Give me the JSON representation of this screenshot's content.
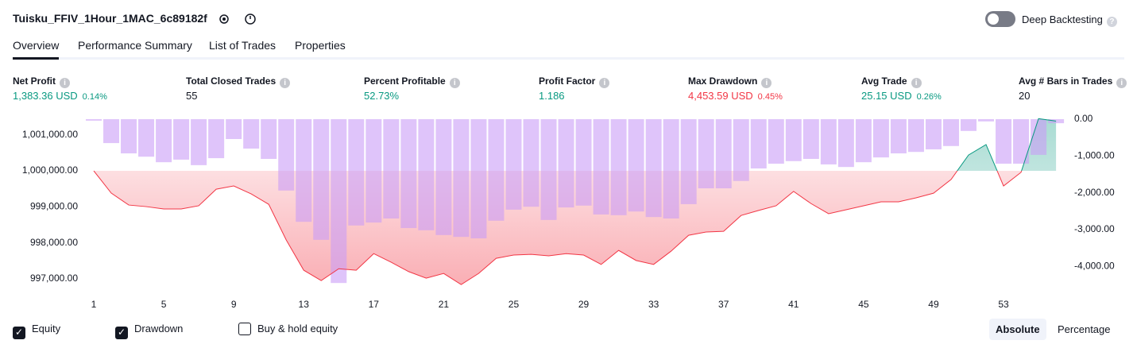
{
  "header": {
    "title": "Tuisku_FFIV_1Hour_1MAC_6c89182f",
    "toggle_label": "Deep Backtesting",
    "toggle_on": false
  },
  "tabs": {
    "items": [
      "Overview",
      "Performance Summary",
      "List of Trades",
      "Properties"
    ],
    "active": 0
  },
  "metrics": [
    {
      "label": "Net Profit",
      "value": "1,383.36 USD",
      "percent": "0.14%",
      "color": "#089981"
    },
    {
      "label": "Total Closed Trades",
      "value": "55",
      "color": "#131722"
    },
    {
      "label": "Percent Profitable",
      "value": "52.73%",
      "color": "#089981"
    },
    {
      "label": "Profit Factor",
      "value": "1.186",
      "color": "#089981"
    },
    {
      "label": "Max Drawdown",
      "value": "4,453.59 USD",
      "percent": "0.45%",
      "color": "#f23645"
    },
    {
      "label": "Avg Trade",
      "value": "25.15 USD",
      "percent": "0.26%",
      "color": "#089981"
    },
    {
      "label": "Avg # Bars in Trades",
      "value": "20",
      "color": "#131722"
    }
  ],
  "chart_data": {
    "type": "combo",
    "categories": [
      1,
      null,
      null,
      null,
      5,
      null,
      null,
      null,
      9,
      null,
      null,
      null,
      13,
      null,
      null,
      null,
      17,
      null,
      null,
      null,
      21,
      null,
      null,
      null,
      25,
      null,
      null,
      null,
      29,
      null,
      null,
      null,
      33,
      null,
      null,
      null,
      37,
      null,
      null,
      null,
      41,
      null,
      null,
      null,
      45,
      null,
      null,
      null,
      49,
      null,
      null,
      null,
      53,
      null,
      null,
      null
    ],
    "series": [
      {
        "name": "Equity",
        "type": "line",
        "axis": "y",
        "color": "#f23645",
        "color_up": "#089981",
        "values": [
          1000000,
          999382,
          999050,
          999006,
          998940,
          998940,
          999030,
          999490,
          999580,
          999360,
          999070,
          998080,
          997240,
          996950,
          997280,
          997240,
          997700,
          997460,
          997200,
          997020,
          997150,
          996840,
          997150,
          997570,
          997660,
          997680,
          997640,
          997700,
          997660,
          997400,
          997790,
          997510,
          997400,
          997770,
          998210,
          998300,
          998320,
          998760,
          998900,
          999030,
          999430,
          999090,
          998810,
          998920,
          999030,
          999140,
          999140,
          999250,
          999380,
          999760,
          1000440,
          1000730,
          999580,
          999960,
          1001450,
          1001383.36
        ]
      },
      {
        "name": "Drawdown",
        "type": "bar",
        "axis": "y2",
        "color": "#c99cf7",
        "values": [
          -40,
          -650,
          -930,
          -1020,
          -1170,
          -1100,
          -1250,
          -1060,
          -540,
          -800,
          -1080,
          -1940,
          -2790,
          -3280,
          -4453.59,
          -2890,
          -2810,
          -2700,
          -2960,
          -3020,
          -3150,
          -3200,
          -3240,
          -2760,
          -2460,
          -2380,
          -2740,
          -2400,
          -2350,
          -2590,
          -2610,
          -2510,
          -2660,
          -2700,
          -2310,
          -1880,
          -1880,
          -1680,
          -1340,
          -1210,
          -1140,
          -1080,
          -1230,
          -1300,
          -1170,
          -1040,
          -930,
          -890,
          -820,
          -730,
          -320,
          -60,
          -1210,
          -1210,
          -970,
          -110
        ]
      }
    ],
    "ylim": [
      996690,
      1001435
    ],
    "yticks": [
      {
        "value": 1001000,
        "label": "1,001,000.00"
      },
      {
        "value": 1000000,
        "label": "1,000,000.00"
      },
      {
        "value": 999000,
        "label": "999,000.00"
      },
      {
        "value": 998000,
        "label": "998,000.00"
      },
      {
        "value": 997000,
        "label": "997,000.00"
      }
    ],
    "y2lim": [
      -4644,
      0
    ],
    "y2ticks": [
      {
        "value": 0,
        "label": "0.00"
      },
      {
        "value": -1000,
        "label": "-1,000.00"
      },
      {
        "value": -2000,
        "label": "-2,000.00"
      },
      {
        "value": -3000,
        "label": "-3,000.00"
      },
      {
        "value": -4000,
        "label": "-4,000.00"
      }
    ]
  },
  "legend": [
    {
      "label": "Equity",
      "checked": true
    },
    {
      "label": "Drawdown",
      "checked": true
    },
    {
      "label": "Buy & hold equity",
      "checked": false
    }
  ],
  "modes": {
    "items": [
      "Absolute",
      "Percentage"
    ],
    "active": 0
  }
}
